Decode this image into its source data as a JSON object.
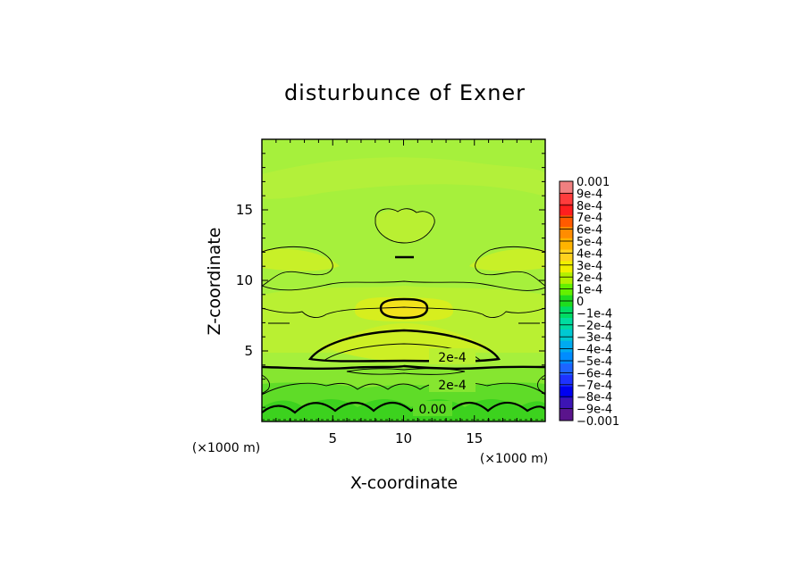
{
  "chart_data": {
    "type": "heatmap",
    "title": "disturbunce of Exner",
    "xlabel": "X-coordinate",
    "ylabel": "Z-coordinate",
    "x_unit": "(×1000 m)",
    "z_unit": "(×1000 m)",
    "xlim": [
      0,
      20
    ],
    "ylim": [
      0,
      20
    ],
    "x_ticks": [
      5,
      10,
      15
    ],
    "y_ticks": [
      5,
      10,
      15
    ],
    "grid": false,
    "colorbar": {
      "labels": [
        "0.001",
        "9e-4",
        "8e-4",
        "7e-4",
        "6e-4",
        "5e-4",
        "4e-4",
        "3e-4",
        "2e-4",
        "1e-4",
        "0",
        "−1e-4",
        "−2e-4",
        "−3e-4",
        "−4e-4",
        "−5e-4",
        "−6e-4",
        "−7e-4",
        "−8e-4",
        "−9e-4",
        "−0.001"
      ],
      "colors": [
        "#f08080",
        "#ff3c3c",
        "#ff1e1e",
        "#ff5a00",
        "#ff8c00",
        "#ffb400",
        "#ffd21e",
        "#f0f000",
        "#b4f000",
        "#64f000",
        "#1edc1e",
        "#00dc64",
        "#00dca0",
        "#00c8d2",
        "#00aaf0",
        "#008cff",
        "#1e64ff",
        "#1e32ff",
        "#0000f0",
        "#3c14b4",
        "#5a148c"
      ],
      "placement": "right"
    },
    "contour_labels": [
      {
        "text": "2e-4",
        "x": 13.4,
        "z": 4.4
      },
      {
        "text": "2e-4",
        "x": 13.4,
        "z": 2.6
      },
      {
        "text": "0.00",
        "x": 12.0,
        "z": 0.7
      }
    ],
    "field_colors": {
      "background": "#a6f03c",
      "mid": "#b9f032",
      "light": "#c8f028",
      "yellowish": "#d7ee1e",
      "peak": "#f2e21c",
      "green_low": "#5fdc28",
      "green_lower": "#3cd21e"
    }
  }
}
